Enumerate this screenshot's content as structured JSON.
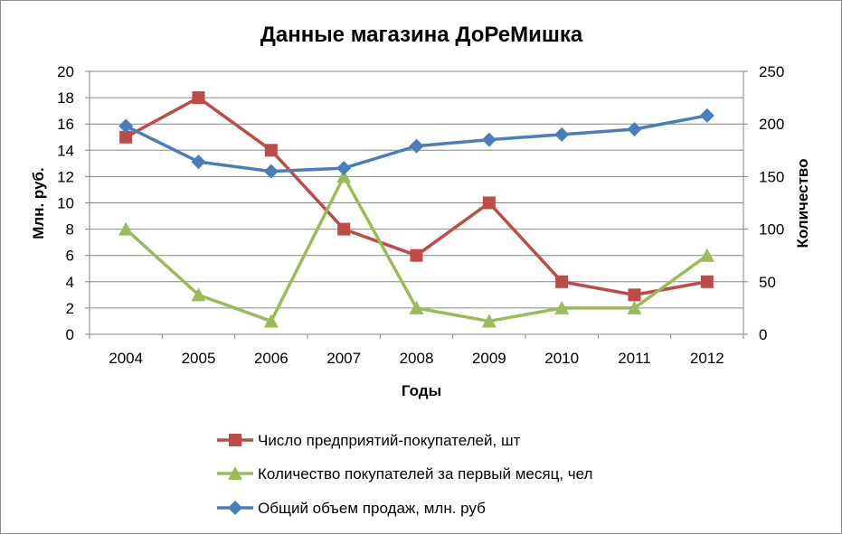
{
  "chart_data": {
    "type": "line",
    "title": "Данные магазина ДоРеМишка",
    "xlabel": "Годы",
    "ylabel_left": "Млн. руб.",
    "ylabel_right": "Количество",
    "categories": [
      "2004",
      "2005",
      "2006",
      "2007",
      "2008",
      "2009",
      "2010",
      "2011",
      "2012"
    ],
    "y_left": {
      "min": 0,
      "max": 20,
      "step": 2,
      "ticks": [
        "0",
        "2",
        "4",
        "6",
        "8",
        "10",
        "12",
        "14",
        "16",
        "18",
        "20"
      ]
    },
    "y_right": {
      "min": 0,
      "max": 250,
      "step": 50,
      "ticks": [
        "0",
        "50",
        "100",
        "150",
        "200",
        "250"
      ]
    },
    "grid": "horizontal",
    "legend_position": "bottom",
    "series": [
      {
        "name": "Число предприятий-покупателей, шт",
        "axis": "left",
        "color": "#be4b48",
        "marker": "square",
        "values": [
          15,
          18,
          14,
          8,
          6,
          10,
          4,
          3,
          4
        ]
      },
      {
        "name": "Количество покупателей за первый месяц, чел",
        "axis": "left",
        "color": "#9bbb59",
        "marker": "triangle",
        "values": [
          8,
          3,
          1,
          12,
          2,
          1,
          2,
          2,
          6
        ]
      },
      {
        "name": "Общий объем продаж, млн. руб",
        "axis": "right",
        "color": "#4a7ebb",
        "marker": "diamond",
        "values": [
          198,
          164,
          155,
          158,
          179,
          185,
          190,
          195,
          208
        ]
      }
    ]
  }
}
